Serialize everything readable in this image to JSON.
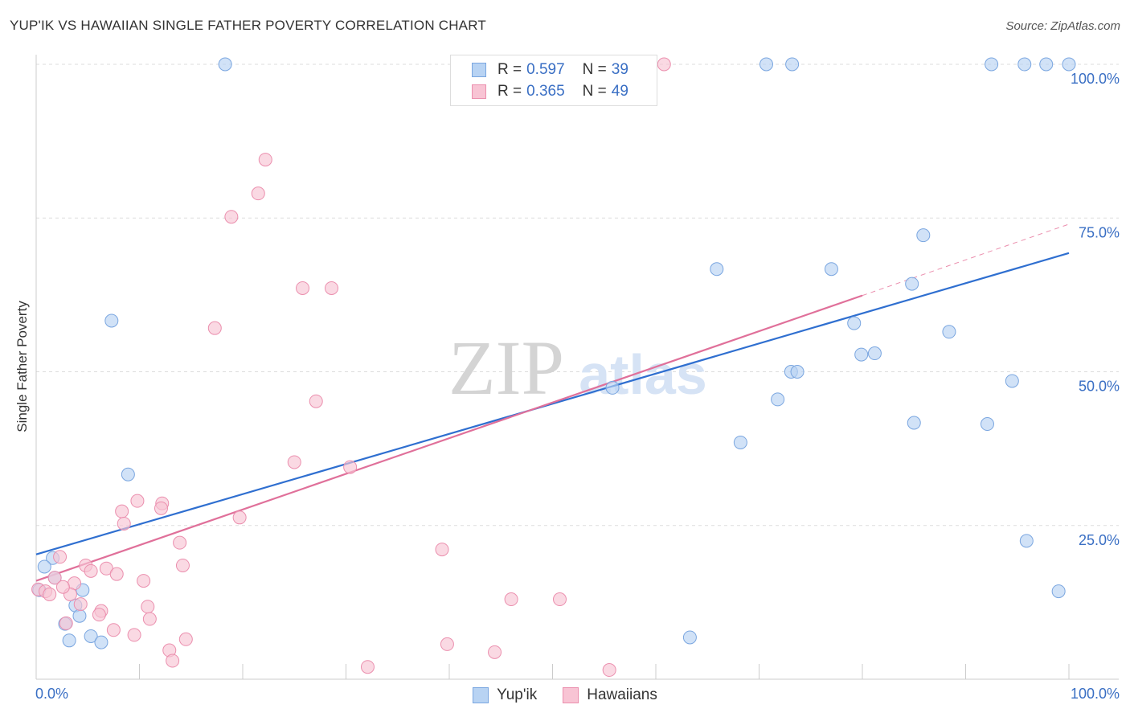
{
  "header": {
    "title": "YUP'IK VS HAWAIIAN SINGLE FATHER POVERTY CORRELATION CHART",
    "source": "Source: ZipAtlas.com"
  },
  "legend": {
    "yupik": {
      "r_label": "R =",
      "r_value": "0.597",
      "n_label": "N =",
      "n_value": "39"
    },
    "hawaiian": {
      "r_label": "R =",
      "r_value": "0.365",
      "n_label": "N =",
      "n_value": "49"
    }
  },
  "bottom_legend": {
    "yupik": "Yup'ik",
    "hawaiian": "Hawaiians"
  },
  "watermark": {
    "zip": "ZIP",
    "atlas": "atlas"
  },
  "colors": {
    "yupik_fill": "#b8d3f3",
    "yupik_stroke": "#7aa6e0",
    "yupik_line": "#2f6fd0",
    "hawaiian_fill": "#f8c4d4",
    "hawaiian_stroke": "#eb8fae",
    "hawaiian_line": "#e0709a",
    "tick_text": "#3a6fc4",
    "grid": "#dddddd"
  },
  "chart_data": {
    "type": "scatter",
    "title": "YUP'IK VS HAWAIIAN SINGLE FATHER POVERTY CORRELATION CHART",
    "xlabel": "",
    "ylabel": "Single Father Poverty",
    "xlim": [
      0,
      100
    ],
    "ylim": [
      0,
      100
    ],
    "x_tick_labels": [
      "0.0%",
      "100.0%"
    ],
    "y_tick_labels": [
      "25.0%",
      "50.0%",
      "75.0%",
      "100.0%"
    ],
    "y_tick_values": [
      25,
      50,
      75,
      100
    ],
    "series": [
      {
        "name": "Yup'ik",
        "r": 0.597,
        "n": 39,
        "trend": {
          "x0": 0,
          "y0": 20.3,
          "x1": 100,
          "y1": 69.3
        },
        "points": [
          {
            "x": 18.3,
            "y": 100
          },
          {
            "x": 70.7,
            "y": 100
          },
          {
            "x": 73.2,
            "y": 100
          },
          {
            "x": 92.5,
            "y": 100
          },
          {
            "x": 95.7,
            "y": 100
          },
          {
            "x": 97.8,
            "y": 100
          },
          {
            "x": 100,
            "y": 100
          },
          {
            "x": 85.9,
            "y": 72.2
          },
          {
            "x": 65.9,
            "y": 66.7
          },
          {
            "x": 77.0,
            "y": 66.7
          },
          {
            "x": 84.8,
            "y": 64.3
          },
          {
            "x": 7.3,
            "y": 58.3
          },
          {
            "x": 79.2,
            "y": 57.9
          },
          {
            "x": 88.4,
            "y": 56.5
          },
          {
            "x": 79.9,
            "y": 52.8
          },
          {
            "x": 81.2,
            "y": 53.0
          },
          {
            "x": 73.1,
            "y": 50.0
          },
          {
            "x": 73.7,
            "y": 50.0
          },
          {
            "x": 94.5,
            "y": 48.5
          },
          {
            "x": 55.8,
            "y": 47.4
          },
          {
            "x": 71.8,
            "y": 45.5
          },
          {
            "x": 85.0,
            "y": 41.7
          },
          {
            "x": 92.1,
            "y": 41.5
          },
          {
            "x": 68.2,
            "y": 38.5
          },
          {
            "x": 8.9,
            "y": 33.3
          },
          {
            "x": 95.9,
            "y": 22.5
          },
          {
            "x": 1.6,
            "y": 19.7
          },
          {
            "x": 0.8,
            "y": 18.3
          },
          {
            "x": 1.8,
            "y": 16.5
          },
          {
            "x": 0.3,
            "y": 14.5
          },
          {
            "x": 4.5,
            "y": 14.5
          },
          {
            "x": 99.0,
            "y": 14.3
          },
          {
            "x": 3.8,
            "y": 12.0
          },
          {
            "x": 4.2,
            "y": 10.3
          },
          {
            "x": 2.8,
            "y": 9.0
          },
          {
            "x": 5.3,
            "y": 7.0
          },
          {
            "x": 3.2,
            "y": 6.3
          },
          {
            "x": 6.3,
            "y": 6.0
          },
          {
            "x": 63.3,
            "y": 6.8
          }
        ]
      },
      {
        "name": "Hawaiians",
        "r": 0.365,
        "n": 49,
        "trend": {
          "x0": 0,
          "y0": 16.0,
          "x1": 80,
          "y1": 62.4,
          "ext_x1": 100,
          "ext_y1": 74.0
        },
        "points": [
          {
            "x": 60.8,
            "y": 100
          },
          {
            "x": 22.2,
            "y": 84.5
          },
          {
            "x": 21.5,
            "y": 79.0
          },
          {
            "x": 18.9,
            "y": 75.2
          },
          {
            "x": 25.8,
            "y": 63.6
          },
          {
            "x": 28.6,
            "y": 63.6
          },
          {
            "x": 17.3,
            "y": 57.1
          },
          {
            "x": 27.1,
            "y": 45.2
          },
          {
            "x": 25.0,
            "y": 35.3
          },
          {
            "x": 30.4,
            "y": 34.5
          },
          {
            "x": 9.8,
            "y": 29.0
          },
          {
            "x": 12.2,
            "y": 28.6
          },
          {
            "x": 12.1,
            "y": 27.8
          },
          {
            "x": 8.3,
            "y": 27.3
          },
          {
            "x": 19.7,
            "y": 26.3
          },
          {
            "x": 8.5,
            "y": 25.3
          },
          {
            "x": 13.9,
            "y": 22.2
          },
          {
            "x": 39.3,
            "y": 21.1
          },
          {
            "x": 2.3,
            "y": 19.9
          },
          {
            "x": 14.2,
            "y": 18.5
          },
          {
            "x": 4.8,
            "y": 18.5
          },
          {
            "x": 6.8,
            "y": 18.0
          },
          {
            "x": 5.3,
            "y": 17.6
          },
          {
            "x": 7.8,
            "y": 17.1
          },
          {
            "x": 1.8,
            "y": 16.5
          },
          {
            "x": 10.4,
            "y": 16.0
          },
          {
            "x": 3.7,
            "y": 15.6
          },
          {
            "x": 0.2,
            "y": 14.6
          },
          {
            "x": 0.9,
            "y": 14.3
          },
          {
            "x": 1.3,
            "y": 13.8
          },
          {
            "x": 3.3,
            "y": 13.8
          },
          {
            "x": 46.0,
            "y": 13.0
          },
          {
            "x": 50.7,
            "y": 13.0
          },
          {
            "x": 4.3,
            "y": 12.2
          },
          {
            "x": 10.8,
            "y": 11.8
          },
          {
            "x": 6.3,
            "y": 11.1
          },
          {
            "x": 6.1,
            "y": 10.5
          },
          {
            "x": 11.0,
            "y": 9.8
          },
          {
            "x": 2.9,
            "y": 9.1
          },
          {
            "x": 7.5,
            "y": 8.0
          },
          {
            "x": 9.5,
            "y": 7.2
          },
          {
            "x": 14.5,
            "y": 6.5
          },
          {
            "x": 39.8,
            "y": 5.7
          },
          {
            "x": 12.9,
            "y": 4.7
          },
          {
            "x": 44.4,
            "y": 4.4
          },
          {
            "x": 13.2,
            "y": 3.0
          },
          {
            "x": 32.1,
            "y": 2.0
          },
          {
            "x": 55.5,
            "y": 1.5
          },
          {
            "x": 2.6,
            "y": 15.0
          }
        ]
      }
    ]
  }
}
